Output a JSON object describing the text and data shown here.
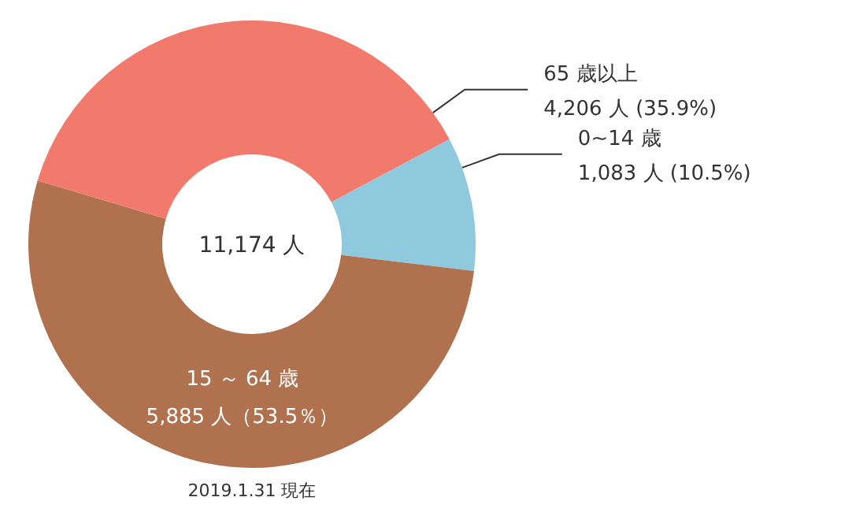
{
  "chart_data": {
    "type": "donut",
    "categories": [
      "0~14 歳",
      "15 ～ 64 歳",
      "65 歳以上"
    ],
    "values": [
      1083,
      5885,
      4206
    ],
    "value_labels": [
      "1,083 人 (10.5%)",
      "5,885 人（53.5％）",
      "4,206 人 (35.9%)"
    ],
    "colors": [
      "#8fc9de",
      "#b0714e",
      "#f27a6d"
    ],
    "annotations": [
      "11,174 人",
      "2019.1.31 現在"
    ]
  }
}
